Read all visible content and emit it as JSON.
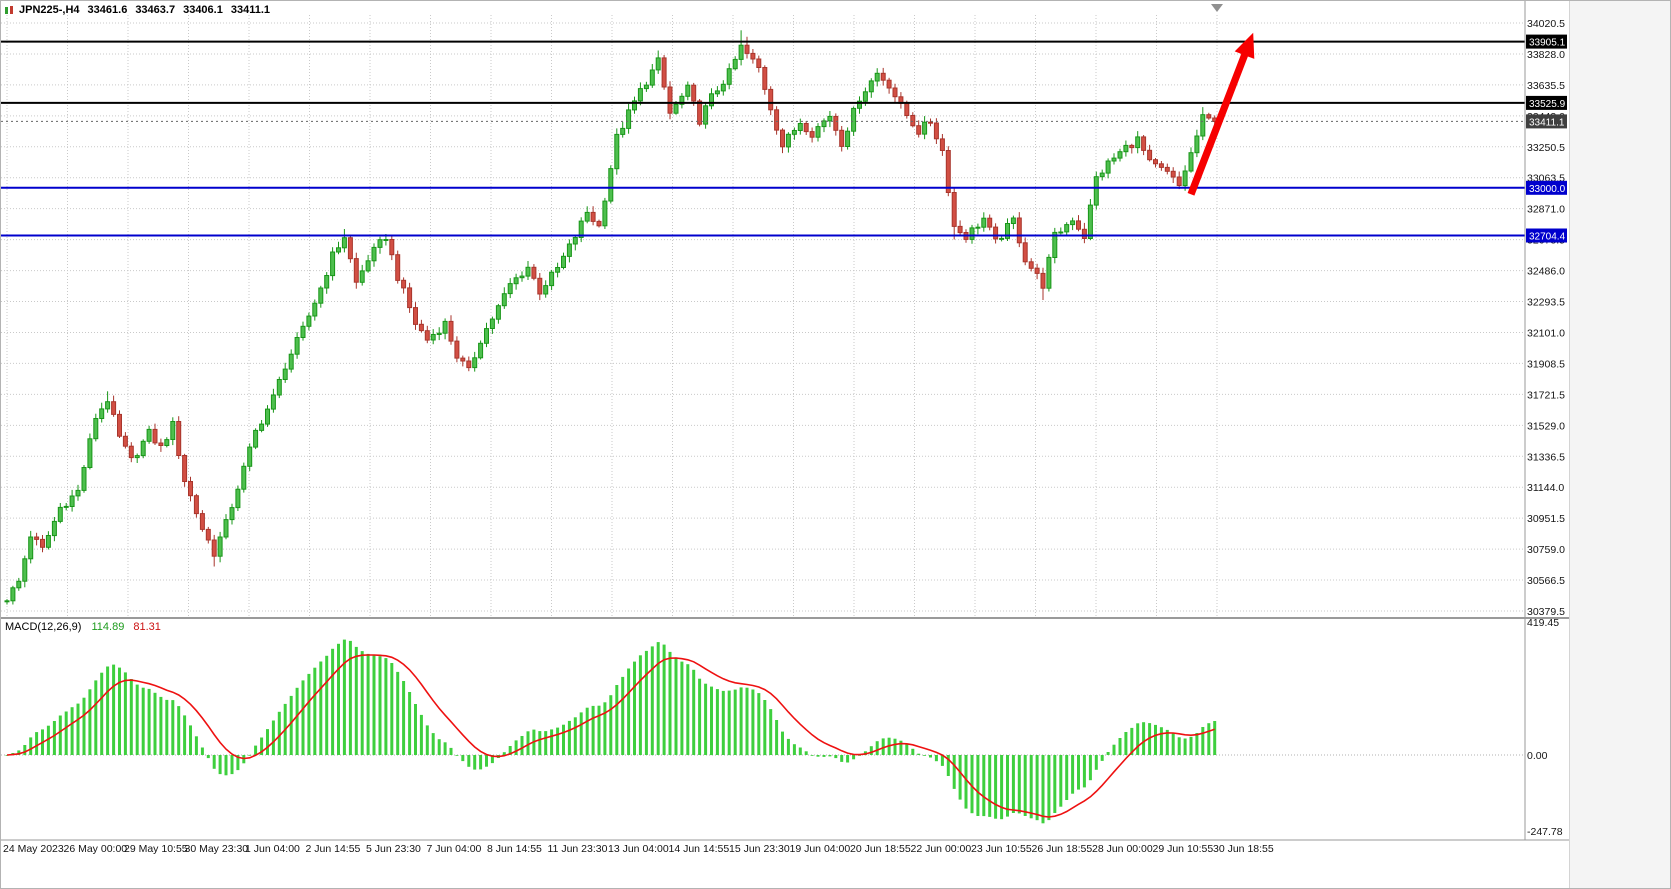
{
  "chart_data": [
    {
      "type": "candlestick",
      "symbol_period": "JPN225-,H4",
      "ohlc_readout": {
        "open": "33461.6",
        "high": "33463.7",
        "low": "33406.1",
        "close": "33411.1"
      },
      "y_axis": {
        "side": "right",
        "top_value": 34020.5,
        "bottom_value": 30379.5,
        "ticks": [
          "34020.5",
          "33828.0",
          "33635.5",
          "33443.0",
          "33250.5",
          "33063.5",
          "32871.0",
          "32678.5",
          "32486.0",
          "32293.5",
          "32101.0",
          "31908.5",
          "31721.5",
          "31529.0",
          "31336.5",
          "31144.0",
          "30951.5",
          "30759.0",
          "30566.5",
          "30379.5"
        ]
      },
      "x_axis": {
        "labels": [
          "24 May 2023",
          "26 May 00:00",
          "29 May 10:55",
          "30 May 23:30",
          "1 Jun 04:00",
          "2 Jun 14:55",
          "5 Jun 23:30",
          "7 Jun 04:00",
          "8 Jun 14:55",
          "11 Jun 23:30",
          "13 Jun 04:00",
          "14 Jun 14:55",
          "15 Jun 23:30",
          "19 Jun 04:00",
          "20 Jun 18:55",
          "22 Jun 00:00",
          "23 Jun 10:55",
          "26 Jun 18:55",
          "28 Jun 00:00",
          "29 Jun 10:55",
          "30 Jun 18:55"
        ]
      },
      "candle_count": 205,
      "price_path_anchors": [
        [
          0,
          30460
        ],
        [
          2,
          30560
        ],
        [
          4,
          30850
        ],
        [
          6,
          30760
        ],
        [
          9,
          31020
        ],
        [
          12,
          31120
        ],
        [
          15,
          31580
        ],
        [
          17,
          31690
        ],
        [
          19,
          31450
        ],
        [
          21,
          31310
        ],
        [
          24,
          31480
        ],
        [
          26,
          31390
        ],
        [
          28,
          31530
        ],
        [
          30,
          31190
        ],
        [
          33,
          30890
        ],
        [
          35,
          30740
        ],
        [
          37,
          30920
        ],
        [
          40,
          31260
        ],
        [
          42,
          31490
        ],
        [
          45,
          31700
        ],
        [
          47,
          31900
        ],
        [
          50,
          32120
        ],
        [
          53,
          32380
        ],
        [
          55,
          32580
        ],
        [
          57,
          32700
        ],
        [
          59,
          32410
        ],
        [
          61,
          32560
        ],
        [
          64,
          32700
        ],
        [
          66,
          32450
        ],
        [
          69,
          32160
        ],
        [
          71,
          32060
        ],
        [
          74,
          32160
        ],
        [
          76,
          31960
        ],
        [
          78,
          31860
        ],
        [
          80,
          32060
        ],
        [
          83,
          32260
        ],
        [
          85,
          32400
        ],
        [
          88,
          32510
        ],
        [
          90,
          32360
        ],
        [
          93,
          32500
        ],
        [
          96,
          32700
        ],
        [
          98,
          32850
        ],
        [
          100,
          32760
        ],
        [
          103,
          33310
        ],
        [
          105,
          33460
        ],
        [
          107,
          33600
        ],
        [
          110,
          33780
        ],
        [
          112,
          33460
        ],
        [
          115,
          33610
        ],
        [
          117,
          33420
        ],
        [
          119,
          33560
        ],
        [
          122,
          33710
        ],
        [
          124,
          33870
        ],
        [
          127,
          33740
        ],
        [
          129,
          33500
        ],
        [
          131,
          33260
        ],
        [
          134,
          33410
        ],
        [
          136,
          33340
        ],
        [
          139,
          33450
        ],
        [
          141,
          33280
        ],
        [
          144,
          33560
        ],
        [
          147,
          33710
        ],
        [
          149,
          33640
        ],
        [
          151,
          33500
        ],
        [
          154,
          33350
        ],
        [
          156,
          33410
        ],
        [
          158,
          33230
        ],
        [
          160,
          32760
        ],
        [
          162,
          32700
        ],
        [
          165,
          32810
        ],
        [
          167,
          32660
        ],
        [
          170,
          32800
        ],
        [
          172,
          32560
        ],
        [
          175,
          32400
        ],
        [
          177,
          32700
        ],
        [
          180,
          32810
        ],
        [
          182,
          32700
        ],
        [
          184,
          33060
        ],
        [
          186,
          33150
        ],
        [
          189,
          33250
        ],
        [
          191,
          33300
        ],
        [
          193,
          33150
        ],
        [
          196,
          33090
        ],
        [
          198,
          33010
        ],
        [
          200,
          33210
        ],
        [
          202,
          33430
        ],
        [
          204,
          33411
        ]
      ],
      "wick_overrides": {
        "0": {
          "low": 30420
        },
        "17": {
          "high": 31740
        },
        "35": {
          "low": 30655
        },
        "57": {
          "high": 32745
        },
        "110": {
          "high": 33850
        },
        "124": {
          "high": 33975
        },
        "125": {
          "high": 33935
        },
        "160": {
          "low": 32680
        },
        "175": {
          "low": 32305
        },
        "202": {
          "high": 33500
        }
      },
      "levels": [
        {
          "id": "resistance-upper",
          "price": 33905.1,
          "label": "33905.1",
          "color": "#000000",
          "style": "solid",
          "width": 2,
          "badge_bg": "#000000"
        },
        {
          "id": "resistance-mid",
          "price": 33525.9,
          "label": "33525.9",
          "color": "#000000",
          "style": "solid",
          "width": 2,
          "badge_bg": "#000000"
        },
        {
          "id": "bid-price",
          "price": 33411.1,
          "label": "33411.1",
          "color": "#666666",
          "style": "dotted",
          "width": 1,
          "badge_bg": "#3f3f3f"
        },
        {
          "id": "support-upper",
          "price": 33000.0,
          "label": "33000.0",
          "color": "#0000cd",
          "style": "solid",
          "width": 2,
          "badge_bg": "#0000cd"
        },
        {
          "id": "support-lower",
          "price": 32704.4,
          "label": "32704.4",
          "color": "#0000cd",
          "style": "solid",
          "width": 2,
          "badge_bg": "#0000cd"
        }
      ],
      "annotations": [
        {
          "type": "arrow",
          "from_bar": 200,
          "from_price": 32960,
          "to_bar": 210.5,
          "to_price": 33960,
          "color": "#f60000"
        }
      ],
      "colors": {
        "background": "#ffffff",
        "grid": "#c9c9c9",
        "bull_fill": "#4ebf4e",
        "bull_stroke": "#189618",
        "bear_fill": "#d24f44",
        "bear_stroke": "#a8352c",
        "axis_text": "#141414"
      },
      "grid": true
    },
    {
      "type": "macd",
      "label": "MACD(12,26,9)",
      "main_value": "114.89",
      "signal_value": "81.31",
      "params": {
        "fast": 12,
        "slow": 26,
        "signal": 9
      },
      "y_axis": {
        "ticks": [
          "419.45",
          "0.00",
          "-247.78"
        ],
        "max": 419.45,
        "min": -247.78
      },
      "colors": {
        "histogram": "#3ecf3e",
        "signal_line": "#ee1111",
        "zero_line": "#b0b0b0"
      }
    }
  ]
}
